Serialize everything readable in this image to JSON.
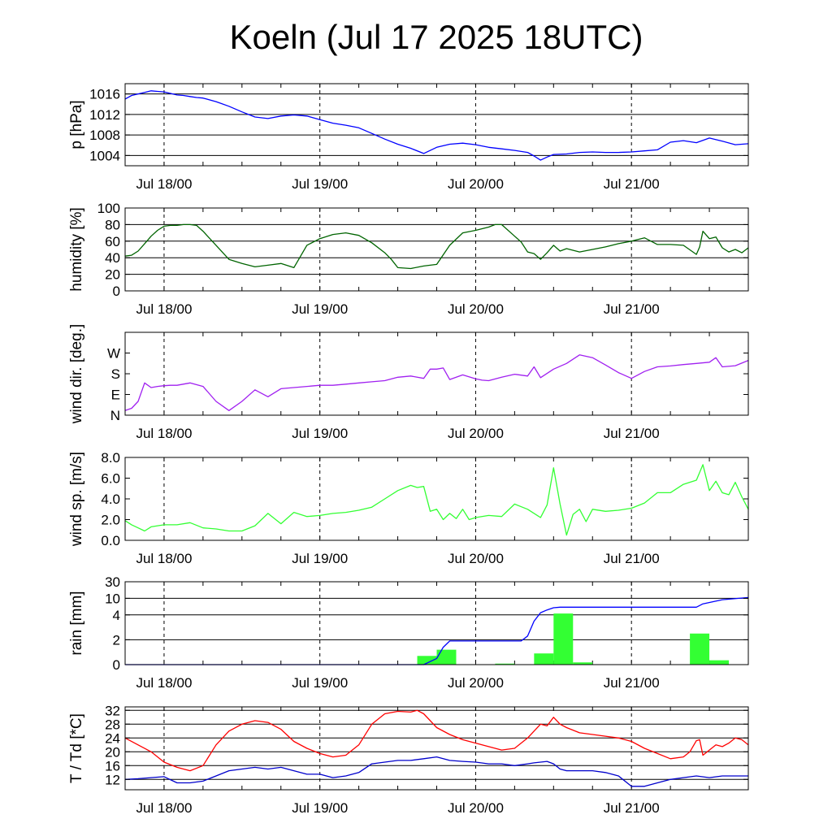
{
  "title": "Koeln (Jul 17 2025 18UTC)",
  "time_axis": {
    "tick_labels": [
      "Jul 18/00",
      "Jul 19/00",
      "Jul 20/00",
      "Jul 21/00"
    ],
    "tick_hours": [
      6,
      30,
      54,
      78
    ],
    "range_hours": [
      0,
      96
    ],
    "minor_tick_step_hours": 6
  },
  "colors": {
    "pressure": "#0000ff",
    "humidity": "#006400",
    "wind_dir": "#a020f0",
    "wind_speed": "#33ff33",
    "rain_bar": "#33ff33",
    "rain_sum": "#0000ff",
    "temperature": "#ff0000",
    "dewpoint": "#0000cc"
  },
  "chart_data": [
    {
      "id": "pressure",
      "type": "line",
      "ylabel": "p [hPa]",
      "ylim": [
        1002,
        1018
      ],
      "yticks": [
        1004,
        1008,
        1012,
        1016
      ],
      "ytick_labels": [
        "1004",
        "1008",
        "1012",
        "1016"
      ],
      "grid": true,
      "series": [
        {
          "color_key": "pressure",
          "x": [
            0,
            1,
            2,
            3,
            4,
            5,
            6,
            7,
            8,
            9,
            10,
            11,
            12,
            14,
            16,
            18,
            20,
            22,
            24,
            26,
            28,
            30,
            32,
            34,
            36,
            38,
            40,
            42,
            44,
            46,
            48,
            50,
            52,
            54,
            56,
            58,
            60,
            62,
            63,
            64,
            65,
            66,
            68,
            70,
            72,
            74,
            76,
            78,
            80,
            82,
            84,
            86,
            88,
            90,
            92,
            94,
            96
          ],
          "values": [
            1015.0,
            1015.7,
            1016.0,
            1016.3,
            1016.6,
            1016.5,
            1016.4,
            1016.1,
            1015.8,
            1015.7,
            1015.5,
            1015.3,
            1015.2,
            1014.5,
            1013.6,
            1012.5,
            1011.5,
            1011.2,
            1011.7,
            1011.9,
            1011.7,
            1011.0,
            1010.3,
            1009.9,
            1009.4,
            1008.3,
            1007.2,
            1006.2,
            1005.4,
            1004.4,
            1005.6,
            1006.2,
            1006.4,
            1006.1,
            1005.6,
            1005.3,
            1005.0,
            1004.6,
            1003.9,
            1003.1,
            1003.7,
            1004.2,
            1004.3,
            1004.6,
            1004.7,
            1004.6,
            1004.6,
            1004.7,
            1004.9,
            1005.1,
            1006.6,
            1006.9,
            1006.5,
            1007.4,
            1006.8,
            1006.1,
            1006.3
          ]
        }
      ]
    },
    {
      "id": "humidity",
      "type": "line",
      "ylabel": "humidity [%]",
      "ylim": [
        0,
        100
      ],
      "yticks": [
        0,
        20,
        40,
        60,
        80,
        100
      ],
      "ytick_labels": [
        "0",
        "20",
        "40",
        "60",
        "80",
        "100"
      ],
      "grid": true,
      "series": [
        {
          "color_key": "humidity",
          "x": [
            0,
            1,
            2,
            3,
            4,
            5,
            6,
            7,
            8,
            9,
            10,
            11,
            12,
            14,
            16,
            18,
            20,
            22,
            24,
            26,
            28,
            30,
            32,
            34,
            36,
            38,
            40,
            41,
            42,
            44,
            46,
            48,
            50,
            52,
            54,
            56,
            57,
            58,
            60,
            61,
            62,
            63,
            64,
            65,
            66,
            67,
            68,
            70,
            72,
            74,
            76,
            78,
            80,
            82,
            84,
            86,
            88,
            88.5,
            89,
            90,
            91,
            92,
            93,
            94,
            95,
            96
          ],
          "values": [
            42,
            43,
            48,
            57,
            66,
            73,
            78,
            79,
            79,
            80,
            80,
            79,
            72,
            55,
            38,
            33,
            29,
            31,
            33,
            28,
            55,
            63,
            68,
            70,
            67,
            58,
            46,
            38,
            28,
            27,
            30,
            32,
            55,
            70,
            73,
            77,
            80,
            80,
            66,
            59,
            47,
            45,
            38,
            46,
            55,
            48,
            51,
            47,
            50,
            53,
            57,
            60,
            64,
            56,
            56,
            55,
            44,
            53,
            72,
            63,
            65,
            52,
            47,
            50,
            46,
            52
          ]
        }
      ]
    },
    {
      "id": "wind_direction",
      "type": "line",
      "ylabel": "wind dir. [deg.]",
      "ylim": [
        0,
        360
      ],
      "yticks": [
        0,
        90,
        180,
        270
      ],
      "ytick_labels": [
        "N",
        "E",
        "S",
        "W"
      ],
      "grid": false,
      "series": [
        {
          "color_key": "wind_dir",
          "x": [
            0,
            1,
            2,
            3,
            4,
            5,
            6,
            7,
            8,
            10,
            12,
            14,
            16,
            18,
            20,
            22,
            24,
            26,
            28,
            30,
            32,
            34,
            36,
            38,
            40,
            42,
            44,
            46,
            47,
            48,
            49,
            50,
            52,
            54,
            55,
            56,
            58,
            60,
            62,
            63,
            64,
            66,
            68,
            70,
            72,
            74,
            76,
            78,
            80,
            82,
            84,
            86,
            88,
            90,
            91,
            92,
            94,
            96
          ],
          "values": [
            20,
            30,
            60,
            140,
            120,
            125,
            128,
            130,
            130,
            140,
            125,
            60,
            20,
            60,
            110,
            80,
            115,
            120,
            125,
            130,
            130,
            135,
            140,
            145,
            150,
            165,
            170,
            160,
            200,
            200,
            205,
            155,
            175,
            158,
            152,
            150,
            165,
            178,
            170,
            210,
            163,
            200,
            225,
            262,
            250,
            218,
            185,
            160,
            190,
            210,
            214,
            220,
            225,
            230,
            250,
            210,
            215,
            238
          ]
        }
      ]
    },
    {
      "id": "wind_speed",
      "type": "line",
      "ylabel": "wind sp. [m/s]",
      "ylim": [
        0,
        8
      ],
      "yticks": [
        0,
        2,
        4,
        6,
        8
      ],
      "ytick_labels": [
        "0.0",
        "2.0",
        "4.0",
        "6.0",
        "8.0"
      ],
      "grid": false,
      "series": [
        {
          "color_key": "wind_speed",
          "x": [
            0,
            1,
            2,
            3,
            4,
            5,
            6,
            7,
            8,
            10,
            12,
            14,
            16,
            18,
            20,
            22,
            24,
            26,
            28,
            30,
            32,
            34,
            36,
            38,
            40,
            42,
            44,
            45,
            46,
            47,
            48,
            49,
            50,
            51,
            52,
            53,
            54,
            56,
            58,
            60,
            62,
            64,
            65,
            66,
            67,
            68,
            69,
            70,
            71,
            72,
            74,
            76,
            78,
            80,
            82,
            84,
            86,
            88,
            89,
            90,
            91,
            92,
            93,
            94,
            95,
            96
          ],
          "values": [
            1.9,
            1.5,
            1.2,
            0.9,
            1.3,
            1.4,
            1.5,
            1.5,
            1.5,
            1.7,
            1.2,
            1.1,
            0.9,
            0.9,
            1.4,
            2.6,
            1.6,
            2.7,
            2.3,
            2.4,
            2.6,
            2.7,
            2.9,
            3.2,
            4.0,
            4.8,
            5.3,
            5.1,
            5.2,
            2.8,
            3.0,
            2.0,
            2.6,
            2.1,
            3.0,
            2.0,
            2.2,
            2.4,
            2.3,
            3.5,
            3.0,
            2.2,
            3.4,
            7.0,
            3.5,
            0.5,
            2.5,
            3.0,
            1.8,
            3.0,
            2.8,
            2.9,
            3.1,
            3.6,
            4.6,
            4.6,
            5.4,
            5.8,
            7.3,
            4.8,
            5.7,
            4.6,
            4.4,
            5.6,
            4.2,
            3.0
          ]
        }
      ]
    },
    {
      "id": "rain",
      "type": "bar+line",
      "ylabel": "rain [mm]",
      "yticks": [
        0,
        2,
        4,
        10,
        30
      ],
      "ytick_labels": [
        "0",
        "2",
        "4",
        "10",
        "30"
      ],
      "grid": true,
      "bars": {
        "color_key": "rain_bar",
        "bin_hours": 3,
        "bin_starts": [
          0,
          3,
          6,
          9,
          12,
          15,
          18,
          21,
          24,
          27,
          30,
          33,
          36,
          39,
          42,
          45,
          48,
          51,
          54,
          57,
          60,
          63,
          66,
          69,
          72,
          75,
          78,
          81,
          84,
          87,
          90,
          93
        ],
        "values": [
          0,
          0,
          0,
          0,
          0,
          0,
          0,
          0,
          0,
          0,
          0,
          0,
          0,
          0,
          0,
          0.7,
          1.2,
          0,
          0,
          0.08,
          0,
          0.9,
          4.5,
          0.18,
          0,
          0,
          0,
          0,
          0,
          2.5,
          0.35,
          0
        ]
      },
      "sum_series": {
        "color_key": "rain_sum",
        "x": [
          0,
          46,
          48,
          49,
          50,
          54,
          58,
          61,
          62,
          63,
          64,
          65,
          66,
          67,
          70,
          75,
          80,
          84,
          88,
          89,
          92,
          96
        ],
        "values": [
          0,
          0,
          0.5,
          1.4,
          1.9,
          1.9,
          1.9,
          1.9,
          2.3,
          3.5,
          4.8,
          5.8,
          6.6,
          6.8,
          6.8,
          6.8,
          6.8,
          6.8,
          6.8,
          8.0,
          9.5,
          11.0
        ]
      }
    },
    {
      "id": "temperature",
      "type": "line",
      "ylabel": "T / Td [*C]",
      "ylim": [
        9,
        33
      ],
      "yticks": [
        12,
        16,
        20,
        24,
        28,
        32
      ],
      "ytick_labels": [
        "12",
        "16",
        "20",
        "24",
        "28",
        "32"
      ],
      "grid": true,
      "series": [
        {
          "name": "T",
          "color_key": "temperature",
          "x": [
            0,
            2,
            4,
            6,
            8,
            10,
            12,
            14,
            16,
            18,
            20,
            22,
            24,
            26,
            28,
            30,
            32,
            34,
            36,
            38,
            40,
            42,
            44,
            45,
            46,
            47,
            48,
            50,
            52,
            54,
            56,
            58,
            60,
            62,
            63,
            64,
            65,
            66,
            67,
            68,
            70,
            72,
            74,
            76,
            78,
            80,
            82,
            84,
            86,
            87,
            88,
            88.5,
            89,
            90,
            91,
            92,
            93,
            94,
            95,
            96
          ],
          "values": [
            24,
            22,
            20,
            17,
            15.5,
            14.5,
            16,
            22,
            26,
            28,
            29,
            28.5,
            26.5,
            23,
            21,
            19.5,
            18.5,
            19,
            22,
            28,
            31,
            31.7,
            31.5,
            32,
            31,
            29,
            27,
            25,
            23.5,
            22.5,
            21.5,
            20.5,
            21,
            24,
            26,
            28,
            27.5,
            30,
            28,
            27,
            25.5,
            25,
            24.5,
            24,
            23,
            21,
            19.5,
            18,
            18.5,
            20,
            23.2,
            23.5,
            19,
            20.5,
            22,
            21.5,
            22.5,
            24,
            23.5,
            22
          ]
        },
        {
          "name": "Td",
          "color_key": "dewpoint",
          "x": [
            0,
            2,
            4,
            6,
            8,
            10,
            12,
            14,
            16,
            18,
            20,
            22,
            24,
            26,
            28,
            30,
            32,
            34,
            36,
            38,
            40,
            42,
            44,
            46,
            48,
            50,
            52,
            54,
            56,
            58,
            60,
            62,
            63,
            64,
            65,
            66,
            67,
            68,
            70,
            72,
            74,
            76,
            78,
            80,
            82,
            84,
            86,
            88,
            90,
            92,
            94,
            96
          ],
          "values": [
            12,
            12.2,
            12.5,
            12.8,
            11,
            11,
            11.5,
            13,
            14.5,
            15,
            15.5,
            15,
            15.5,
            14.5,
            13.5,
            13.5,
            12.5,
            13,
            14,
            16.5,
            17,
            17.5,
            17.5,
            18,
            18.5,
            17.5,
            17.2,
            17,
            16.5,
            16.5,
            16,
            16.5,
            16.8,
            17,
            17.2,
            16.5,
            15,
            14.5,
            14.5,
            14.5,
            14,
            13,
            10,
            10,
            11,
            12,
            12.5,
            13,
            12.5,
            13,
            13,
            13
          ]
        }
      ]
    }
  ]
}
